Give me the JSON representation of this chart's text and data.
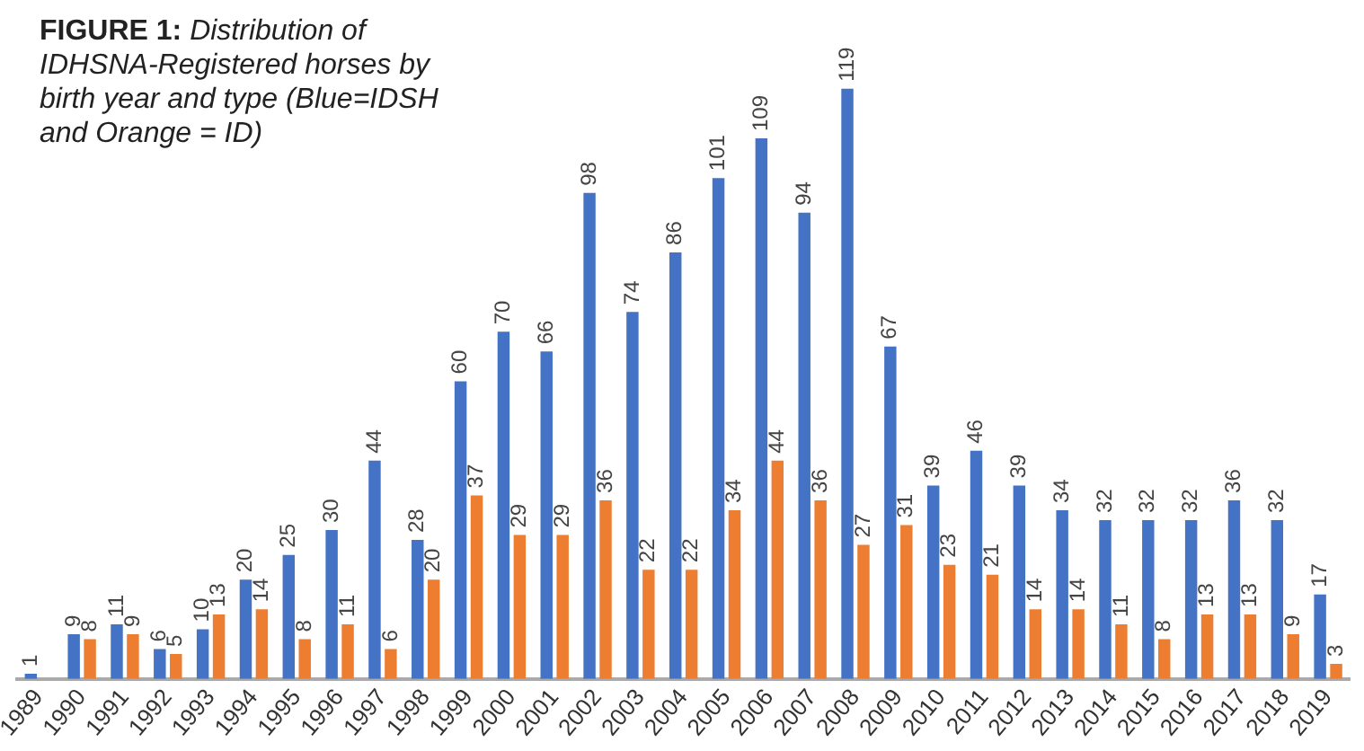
{
  "chart_data": {
    "type": "bar",
    "title": "FIGURE 1: Distribution of IDHSNA-Registered horses by birth year and type (Blue=IDSH and Orange = ID)",
    "categories": [
      "1989",
      "1990",
      "1991",
      "1992",
      "1993",
      "1994",
      "1995",
      "1996",
      "1997",
      "1998",
      "1999",
      "2000",
      "2001",
      "2002",
      "2003",
      "2004",
      "2005",
      "2006",
      "2007",
      "2008",
      "2009",
      "2010",
      "2011",
      "2012",
      "2013",
      "2014",
      "2015",
      "2016",
      "2017",
      "2018",
      "2019"
    ],
    "series": [
      {
        "color": "#4472c4",
        "values": [
          1,
          9,
          11,
          6,
          10,
          20,
          25,
          30,
          44,
          28,
          60,
          70,
          66,
          98,
          74,
          86,
          101,
          109,
          94,
          119,
          67,
          39,
          46,
          39,
          34,
          32,
          32,
          32,
          36,
          32,
          17
        ]
      },
      {
        "color": "#ed7d31",
        "values": [
          null,
          8,
          9,
          5,
          13,
          14,
          8,
          11,
          6,
          20,
          37,
          29,
          29,
          36,
          22,
          22,
          34,
          44,
          36,
          27,
          31,
          23,
          21,
          14,
          14,
          11,
          8,
          13,
          13,
          9,
          3
        ]
      }
    ],
    "data_labels": true,
    "grid": false,
    "legend": false,
    "tick_labels": "x"
  }
}
